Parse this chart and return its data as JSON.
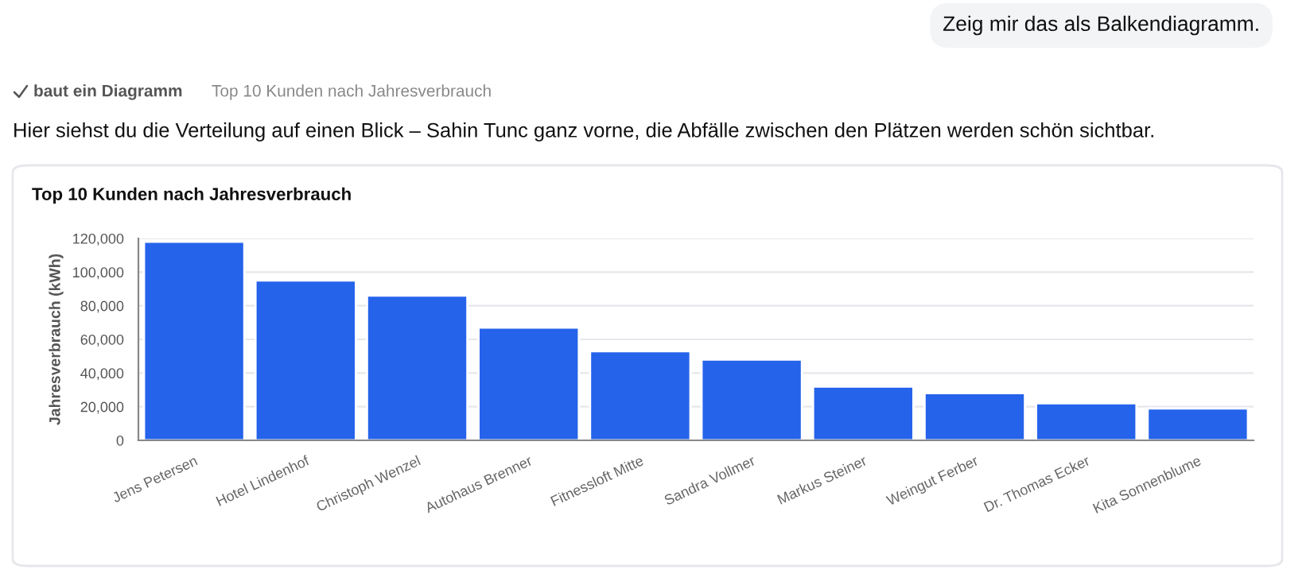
{
  "chart_data": {
    "type": "bar",
    "title": "Top 10 Kunden nach Jahresverbrauch",
    "ylabel": "Jahresverbrauch (kWh)",
    "annotations": [
      "Zeig mir das als Balkendiagramm.",
      "baut ein Diagramm",
      "Top 10 Kunden nach Jahresverbrauch",
      "Hier siehst du die Verteilung auf einen Blick – Sahin Tunc ganz vorne, die Abfälle zwischen den Plätzen werden schön sichtbar."
    ],
    "categories": [
      "Jens Petersen",
      "Hotel Lindenhof",
      "Christoph Wenzel",
      "Autohaus Brenner",
      "Fitnessloft Mitte",
      "Sandra Vollmer",
      "Markus Steiner",
      "Weingut Ferber",
      "Dr. Thomas Ecker",
      "Kita Sonnenblume"
    ],
    "values": [
      118000,
      95000,
      86000,
      67000,
      53000,
      48000,
      32000,
      28000,
      22000,
      19000
    ],
    "color": "#2563eb",
    "ylim": [
      0,
      120000
    ],
    "yticks": [
      {
        "value": 0,
        "label": "0"
      },
      {
        "value": 20000,
        "label": "20,000"
      },
      {
        "value": 40000,
        "label": "40,000"
      },
      {
        "value": 60000,
        "label": "60,000"
      },
      {
        "value": 80000,
        "label": "80,000"
      },
      {
        "value": 100000,
        "label": "100,000"
      },
      {
        "value": 120000,
        "label": "120,000"
      }
    ],
    "grid": "y",
    "legend": false
  }
}
